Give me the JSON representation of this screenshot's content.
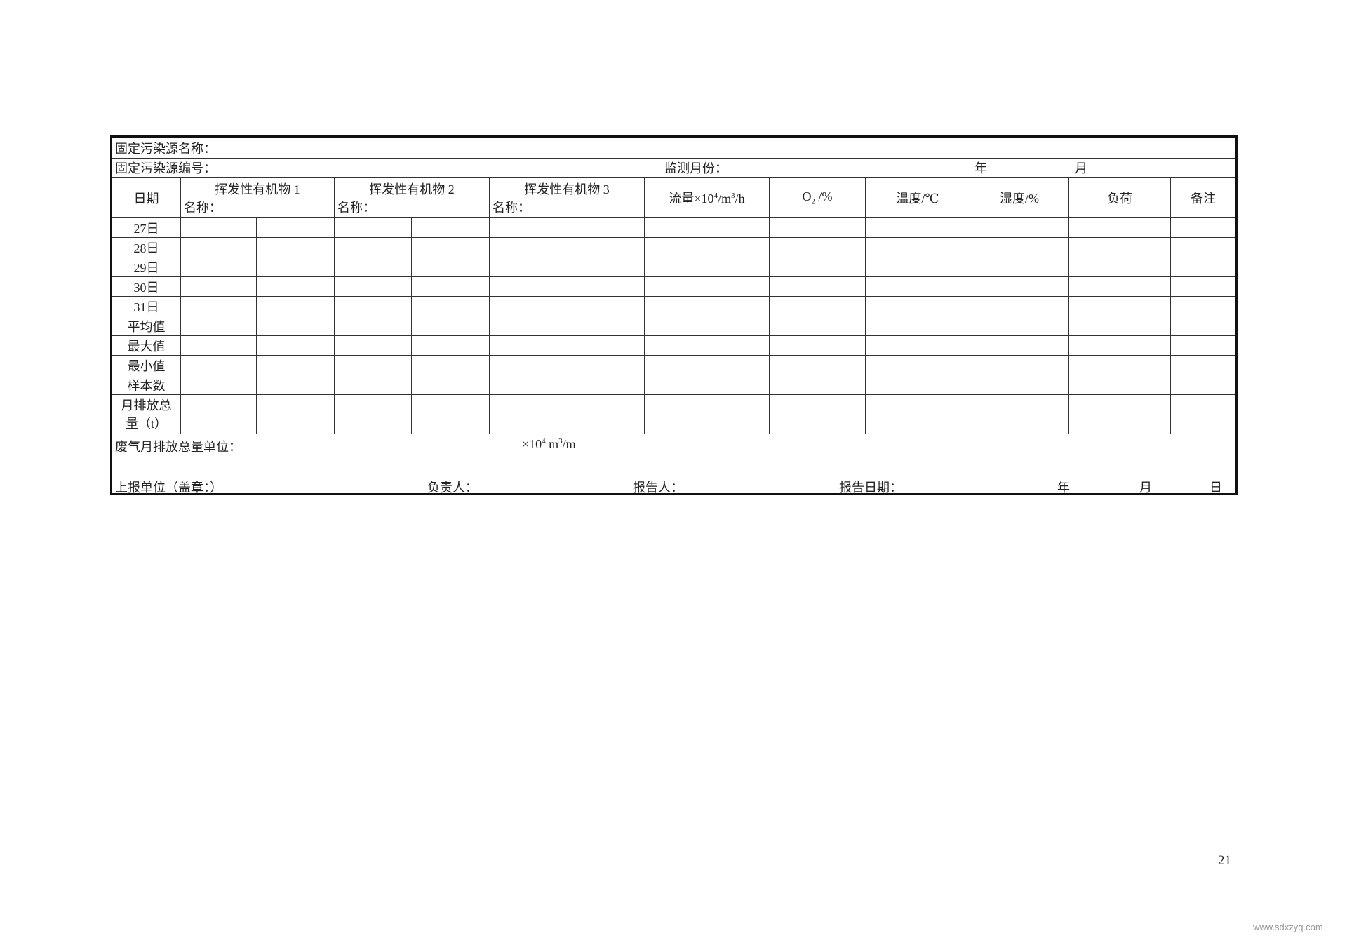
{
  "form": {
    "source_name_label": "固定污染源名称：",
    "source_code_label": "固定污染源编号：",
    "month_label": "监测月份：",
    "year_char": "年",
    "month_char": "月",
    "headers": {
      "date": "日期",
      "voc1": "挥发性有机物 1",
      "voc2": "挥发性有机物 2",
      "voc3": "挥发性有机物 3",
      "name_label": "名称：",
      "flow_prefix": "流量×10",
      "flow_exp": "4",
      "flow_mid": "/m",
      "flow_exp2": "3",
      "flow_suffix": "/h",
      "o2": "O",
      "o2_sub": "2",
      "o2_unit": " /%",
      "temp": "温度/℃",
      "humidity": "湿度/%",
      "load": "负荷",
      "remark": "备注"
    },
    "rows": [
      "27日",
      "28日",
      "29日",
      "30日",
      "31日",
      "平均值",
      "最大值",
      "最小值",
      "样本数",
      "月排放总量（t）"
    ],
    "exhaust_label": "废气月排放总量单位：",
    "exhaust_unit_prefix": "×10",
    "exhaust_unit_exp": "4",
    "exhaust_unit_mid": " m",
    "exhaust_unit_exp2": "3",
    "exhaust_unit_suffix": "/m",
    "reporting_unit": "上报单位（盖章：）",
    "responsible": "负责人：",
    "reporter": "报告人：",
    "report_date": "报告日期：",
    "day_char": "日"
  },
  "page_number": "21",
  "watermark": "www.sdxzyq.com"
}
